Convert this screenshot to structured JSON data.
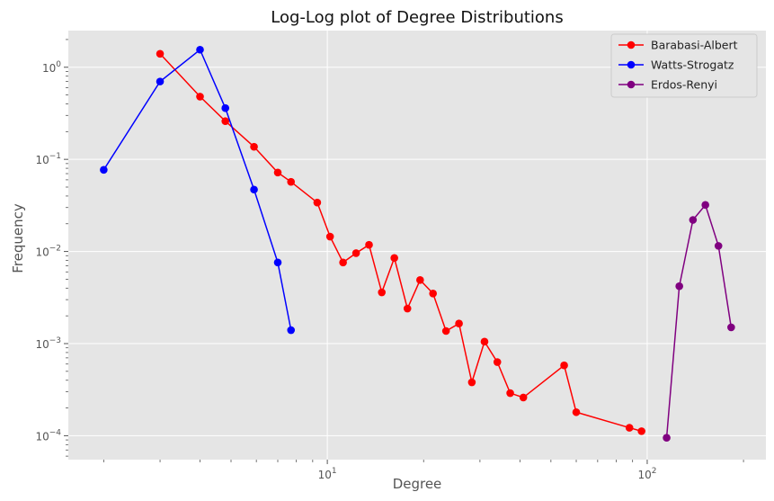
{
  "chart_data": {
    "type": "line",
    "title": "Log-Log plot of Degree Distributions",
    "xlabel": "Degree",
    "ylabel": "Frequency",
    "xscale": "log",
    "yscale": "log",
    "xlim": [
      1.55,
      235
    ],
    "ylim": [
      5.5e-05,
      2.5
    ],
    "grid": true,
    "legend_position": "top-right",
    "x_ticks": [
      {
        "value": 10,
        "base": "10",
        "exp": "1"
      },
      {
        "value": 100,
        "base": "10",
        "exp": "2"
      }
    ],
    "y_ticks": [
      {
        "value": 0.0001,
        "base": "10",
        "exp": "−4"
      },
      {
        "value": 0.001,
        "base": "10",
        "exp": "−3"
      },
      {
        "value": 0.01,
        "base": "10",
        "exp": "−2"
      },
      {
        "value": 0.1,
        "base": "10",
        "exp": "−1"
      },
      {
        "value": 1,
        "base": "10",
        "exp": "0"
      }
    ],
    "series": [
      {
        "name": "Barabasi-Albert",
        "color": "#ff0000",
        "points": [
          [
            3,
            1.4
          ],
          [
            4,
            0.48
          ],
          [
            4.8,
            0.26
          ],
          [
            5.9,
            0.137
          ],
          [
            7,
            0.072
          ],
          [
            7.7,
            0.057
          ],
          [
            9.3,
            0.034
          ],
          [
            10.2,
            0.0145
          ],
          [
            11.2,
            0.0076
          ],
          [
            12.3,
            0.0096
          ],
          [
            13.5,
            0.0118
          ],
          [
            14.8,
            0.0036
          ],
          [
            16.2,
            0.0085
          ],
          [
            17.8,
            0.0024
          ],
          [
            19.5,
            0.0049
          ],
          [
            21.4,
            0.0035
          ],
          [
            23.5,
            0.00137
          ],
          [
            25.8,
            0.00165
          ],
          [
            28.3,
            0.00038
          ],
          [
            31,
            0.00105
          ],
          [
            34,
            0.00063
          ],
          [
            37.3,
            0.00029
          ],
          [
            41,
            0.00026
          ],
          [
            55,
            0.00058
          ],
          [
            60,
            0.00018
          ],
          [
            88,
            0.000122
          ],
          [
            96,
            0.000112
          ]
        ]
      },
      {
        "name": "Watts-Strogatz",
        "color": "#0000ff",
        "points": [
          [
            2,
            0.077
          ],
          [
            3,
            0.7
          ],
          [
            4,
            1.55
          ],
          [
            4.8,
            0.36
          ],
          [
            5.9,
            0.047
          ],
          [
            7,
            0.0076
          ],
          [
            7.7,
            0.0014
          ]
        ]
      },
      {
        "name": "Erdos-Renyi",
        "color": "#800080",
        "points": [
          [
            115,
            9.5e-05
          ],
          [
            126,
            0.0042
          ],
          [
            139,
            0.022
          ],
          [
            152,
            0.032
          ],
          [
            167,
            0.0115
          ],
          [
            183,
            0.0015
          ]
        ]
      }
    ]
  }
}
